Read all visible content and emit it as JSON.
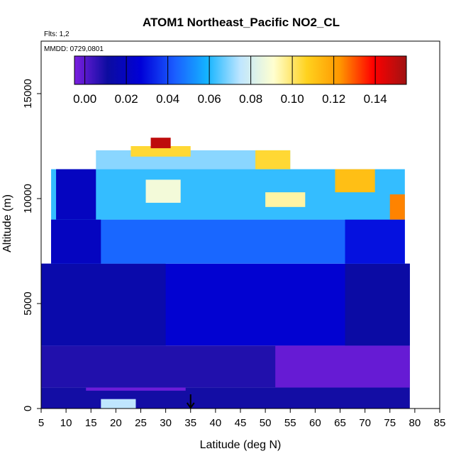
{
  "chart_data": {
    "type": "heatmap",
    "title": "ATOM1 Northeast_Pacific NO2_CL",
    "annotations": [
      "Flts: 1,2",
      "MMDD: 0729,0801"
    ],
    "xlabel": "Latitude (deg N)",
    "ylabel": "Altitude (m)",
    "xlim": [
      5,
      85
    ],
    "ylim": [
      0,
      17500
    ],
    "x_ticks": [
      "5",
      "10",
      "15",
      "20",
      "25",
      "30",
      "35",
      "40",
      "45",
      "50",
      "55",
      "60",
      "65",
      "70",
      "75",
      "80",
      "85"
    ],
    "y_ticks": [
      "0",
      "5000",
      "10000",
      "15000"
    ],
    "colorbar": {
      "range": [
        -0.005,
        0.155
      ],
      "tick_values": [
        0.0,
        0.02,
        0.04,
        0.06,
        0.08,
        0.1,
        0.12,
        0.14
      ],
      "tick_labels": [
        "0.00",
        "0.02",
        "0.04",
        "0.06",
        "0.08",
        "0.10",
        "0.12",
        "0.14"
      ],
      "colors": [
        "#7b1fe0",
        "#0c0ca0",
        "#0000d8",
        "#1a5cff",
        "#14b4ff",
        "#bfe6ff",
        "#ffffd0",
        "#ffd21e",
        "#ff9600",
        "#ff0000",
        "#a01212"
      ]
    },
    "marker": {
      "x": 35,
      "label": "arrow"
    },
    "regions": [
      {
        "x": [
          5,
          79
        ],
        "y": [
          0,
          1000
        ],
        "value": 0.01
      },
      {
        "x": [
          17,
          24
        ],
        "y": [
          0,
          450
        ],
        "value": 0.075
      },
      {
        "x": [
          14,
          34
        ],
        "y": [
          850,
          1150
        ],
        "value": -0.003
      },
      {
        "x": [
          5,
          79
        ],
        "y": [
          1000,
          3000
        ],
        "value": 0.008
      },
      {
        "x": [
          52,
          79
        ],
        "y": [
          1000,
          3000
        ],
        "value": -0.002
      },
      {
        "x": [
          5,
          79
        ],
        "y": [
          3000,
          6900
        ],
        "value": 0.025
      },
      {
        "x": [
          5,
          30
        ],
        "y": [
          3000,
          6900
        ],
        "value": 0.014
      },
      {
        "x": [
          66,
          79
        ],
        "y": [
          3000,
          6900
        ],
        "value": 0.012
      },
      {
        "x": [
          7,
          78
        ],
        "y": [
          6900,
          9000
        ],
        "value": 0.045
      },
      {
        "x": [
          7,
          17
        ],
        "y": [
          6900,
          9000
        ],
        "value": 0.02
      },
      {
        "x": [
          66,
          78
        ],
        "y": [
          6900,
          9000
        ],
        "value": 0.03
      },
      {
        "x": [
          7,
          78
        ],
        "y": [
          9000,
          11400
        ],
        "value": 0.062
      },
      {
        "x": [
          8,
          16
        ],
        "y": [
          9000,
          11400
        ],
        "value": 0.02
      },
      {
        "x": [
          26,
          33
        ],
        "y": [
          9800,
          10900
        ],
        "value": 0.088
      },
      {
        "x": [
          50,
          58
        ],
        "y": [
          9600,
          10300
        ],
        "value": 0.095
      },
      {
        "x": [
          64,
          72
        ],
        "y": [
          10300,
          11400
        ],
        "value": 0.112
      },
      {
        "x": [
          75,
          78
        ],
        "y": [
          9000,
          10200
        ],
        "value": 0.125
      },
      {
        "x": [
          16,
          55
        ],
        "y": [
          11400,
          12300
        ],
        "value": 0.07
      },
      {
        "x": [
          48,
          55
        ],
        "y": [
          11400,
          12300
        ],
        "value": 0.105
      },
      {
        "x": [
          23,
          35
        ],
        "y": [
          12000,
          12500
        ],
        "value": 0.105
      },
      {
        "x": [
          27,
          31
        ],
        "y": [
          12400,
          12900
        ],
        "value": 0.15
      }
    ]
  }
}
